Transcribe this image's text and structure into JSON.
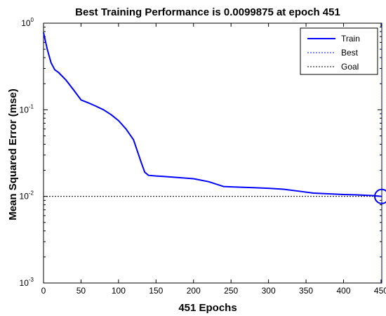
{
  "chart_data": {
    "type": "line",
    "title": "Best Training Performance is 0.0099875 at epoch 451",
    "xlabel": "451 Epochs",
    "ylabel": "Mean Squared Error  (mse)",
    "xlim": [
      0,
      451
    ],
    "ylim": [
      0.001,
      1
    ],
    "yscale": "log",
    "xticks": [
      0,
      50,
      100,
      150,
      200,
      250,
      300,
      350,
      400,
      450
    ],
    "yticks": [
      {
        "base": "10",
        "exp": "-3",
        "value": 0.001
      },
      {
        "base": "10",
        "exp": "-2",
        "value": 0.01
      },
      {
        "base": "10",
        "exp": "-1",
        "value": 0.1
      },
      {
        "base": "10",
        "exp": "0",
        "value": 1
      }
    ],
    "grid": false,
    "legend_position": "top-right",
    "series": [
      {
        "name": "Train",
        "color": "#0000ff",
        "style": "solid",
        "x": [
          0,
          5,
          10,
          15,
          20,
          30,
          40,
          50,
          60,
          70,
          80,
          90,
          100,
          110,
          120,
          130,
          135,
          140,
          150,
          160,
          180,
          200,
          220,
          240,
          260,
          280,
          300,
          320,
          340,
          360,
          380,
          400,
          420,
          440,
          451
        ],
        "y": [
          0.78,
          0.5,
          0.35,
          0.29,
          0.27,
          0.22,
          0.17,
          0.13,
          0.12,
          0.11,
          0.1,
          0.088,
          0.075,
          0.06,
          0.045,
          0.025,
          0.019,
          0.0175,
          0.0172,
          0.017,
          0.0165,
          0.016,
          0.0148,
          0.013,
          0.0128,
          0.0126,
          0.0124,
          0.0121,
          0.0115,
          0.0109,
          0.0107,
          0.0105,
          0.0104,
          0.0102,
          0.0099875
        ]
      },
      {
        "name": "Best",
        "color": "#0000ff",
        "style": "dotted",
        "x_value": 451,
        "marker_y": 0.0099875
      },
      {
        "name": "Goal",
        "color": "#000000",
        "style": "dotted",
        "y_value": 0.01
      }
    ]
  }
}
